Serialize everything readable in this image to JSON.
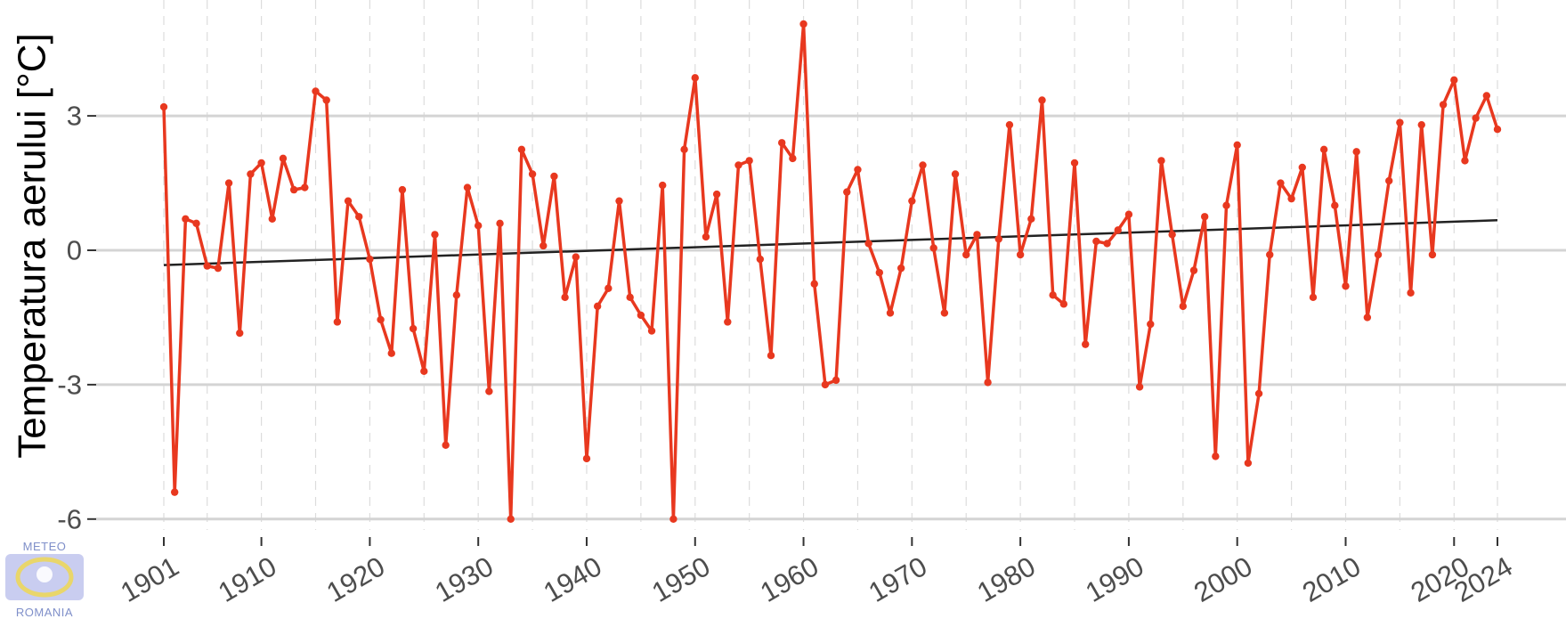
{
  "chart_data": {
    "type": "line",
    "ylabel": "Temperatura aerului [°C]",
    "xlabel": "",
    "xlim": [
      1901,
      2024
    ],
    "ylim": [
      -6,
      5
    ],
    "yticks": [
      -6,
      -3,
      0,
      3
    ],
    "xticks": [
      1901,
      1910,
      1920,
      1930,
      1940,
      1950,
      1960,
      1970,
      1980,
      1990,
      2000,
      2010,
      2020,
      2024
    ],
    "grid": true,
    "series": [
      {
        "color": "#e8381f",
        "x": [
          1901,
          1902,
          1903,
          1904,
          1905,
          1906,
          1907,
          1908,
          1909,
          1910,
          1911,
          1912,
          1913,
          1914,
          1915,
          1916,
          1917,
          1918,
          1919,
          1920,
          1921,
          1922,
          1923,
          1924,
          1925,
          1926,
          1927,
          1928,
          1929,
          1930,
          1931,
          1932,
          1933,
          1934,
          1935,
          1936,
          1937,
          1938,
          1939,
          1940,
          1941,
          1942,
          1943,
          1944,
          1945,
          1946,
          1947,
          1948,
          1949,
          1950,
          1951,
          1952,
          1953,
          1954,
          1955,
          1956,
          1957,
          1958,
          1959,
          1960,
          1961,
          1962,
          1963,
          1964,
          1965,
          1966,
          1967,
          1968,
          1969,
          1970,
          1971,
          1972,
          1973,
          1974,
          1975,
          1976,
          1977,
          1978,
          1979,
          1980,
          1981,
          1982,
          1983,
          1984,
          1985,
          1986,
          1987,
          1988,
          1989,
          1990,
          1991,
          1992,
          1993,
          1994,
          1995,
          1996,
          1997,
          1998,
          1999,
          2000,
          2001,
          2002,
          2003,
          2004,
          2005,
          2006,
          2007,
          2008,
          2009,
          2010,
          2011,
          2012,
          2013,
          2014,
          2015,
          2016,
          2017,
          2018,
          2019,
          2020,
          2021,
          2022,
          2023,
          2024
        ],
        "values": [
          3.2,
          -5.4,
          0.7,
          0.6,
          -0.35,
          -0.4,
          1.5,
          -1.85,
          1.7,
          1.95,
          0.7,
          2.05,
          1.35,
          1.4,
          3.55,
          3.35,
          -1.6,
          1.1,
          0.75,
          -0.2,
          -1.55,
          -2.3,
          1.35,
          -1.75,
          -2.7,
          0.35,
          -4.35,
          -1.0,
          1.4,
          0.55,
          -3.15,
          0.6,
          -6.0,
          2.25,
          1.7,
          0.1,
          1.65,
          -1.05,
          -0.15,
          -4.65,
          -1.25,
          -0.85,
          1.1,
          -1.05,
          -1.45,
          -1.8,
          1.45,
          -6.0,
          2.25,
          3.85,
          0.3,
          1.25,
          -1.6,
          1.9,
          2.0,
          -0.2,
          -2.35,
          2.4,
          2.05,
          5.05,
          -0.75,
          -3.0,
          -2.9,
          1.3,
          1.8,
          0.15,
          -0.5,
          -1.4,
          -0.4,
          1.1,
          1.9,
          0.05,
          -1.4,
          1.7,
          -0.1,
          0.35,
          -2.95,
          0.25,
          2.8,
          -0.1,
          0.7,
          3.35,
          -1.0,
          -1.2,
          1.95,
          -2.1,
          0.2,
          0.15,
          0.45,
          0.8,
          -3.05,
          -1.65,
          2.0,
          0.35,
          -1.25,
          -0.45,
          0.75,
          -4.6,
          1.0,
          2.35,
          -4.75,
          -3.2,
          -0.1,
          1.5,
          1.15,
          1.85,
          -1.05,
          2.25,
          1.0,
          -0.8,
          2.2,
          -1.5,
          -0.1,
          1.55,
          2.85,
          -0.95,
          2.8,
          -0.1,
          3.25,
          3.8,
          2.0,
          2.95,
          3.45,
          2.7
        ]
      },
      {
        "color": "#222222",
        "kind": "trend",
        "x": [
          1901,
          2024
        ],
        "values": [
          -0.33,
          0.67
        ]
      }
    ]
  },
  "logo": {
    "top_text": "METEO",
    "bottom_text": "ROMANIA"
  }
}
